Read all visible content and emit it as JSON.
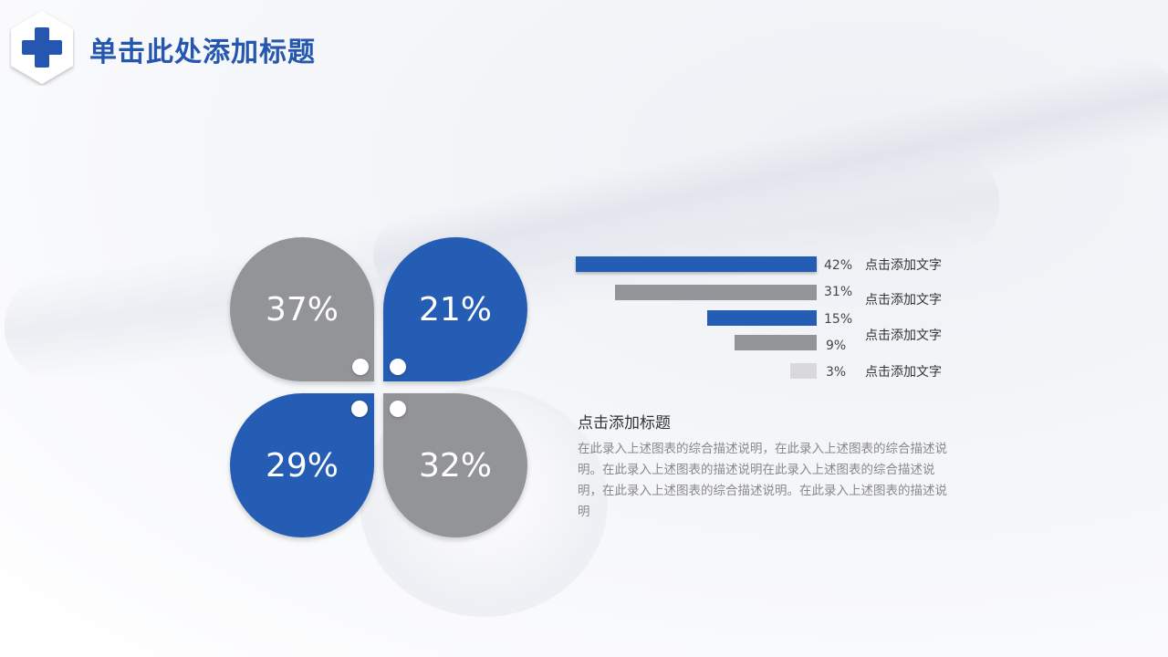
{
  "header": {
    "title": "单击此处添加标题",
    "logo_icon": "medical-cross-icon"
  },
  "clover": {
    "petals": [
      {
        "label": "37%",
        "color": "#939498"
      },
      {
        "label": "21%",
        "color": "#265db4"
      },
      {
        "label": "29%",
        "color": "#265db4"
      },
      {
        "label": "32%",
        "color": "#939498"
      }
    ]
  },
  "bars": [
    {
      "value": 42,
      "pct": "42%",
      "color": "#265db4"
    },
    {
      "value": 31,
      "pct": "31%",
      "color": "#939498"
    },
    {
      "value": 15,
      "pct": "15%",
      "color": "#265db4"
    },
    {
      "value": 9,
      "pct": "9%",
      "color": "#939498"
    },
    {
      "value": 3,
      "pct": "3%",
      "color": "#d9d9db"
    }
  ],
  "bar_labels": [
    "点击添加文字",
    "点击添加文字",
    "点击添加文字",
    "点击添加文字"
  ],
  "section": {
    "title": "点击添加标题",
    "description": "在此录入上述图表的综合描述说明，在此录入上述图表的综合描述说明。在此录入上述图表的描述说明在此录入上述图表的综合描述说明，在此录入上述图表的综合描述说明。在此录入上述图表的描述说明"
  },
  "colors": {
    "accent": "#2557b0",
    "gray": "#939498"
  }
}
